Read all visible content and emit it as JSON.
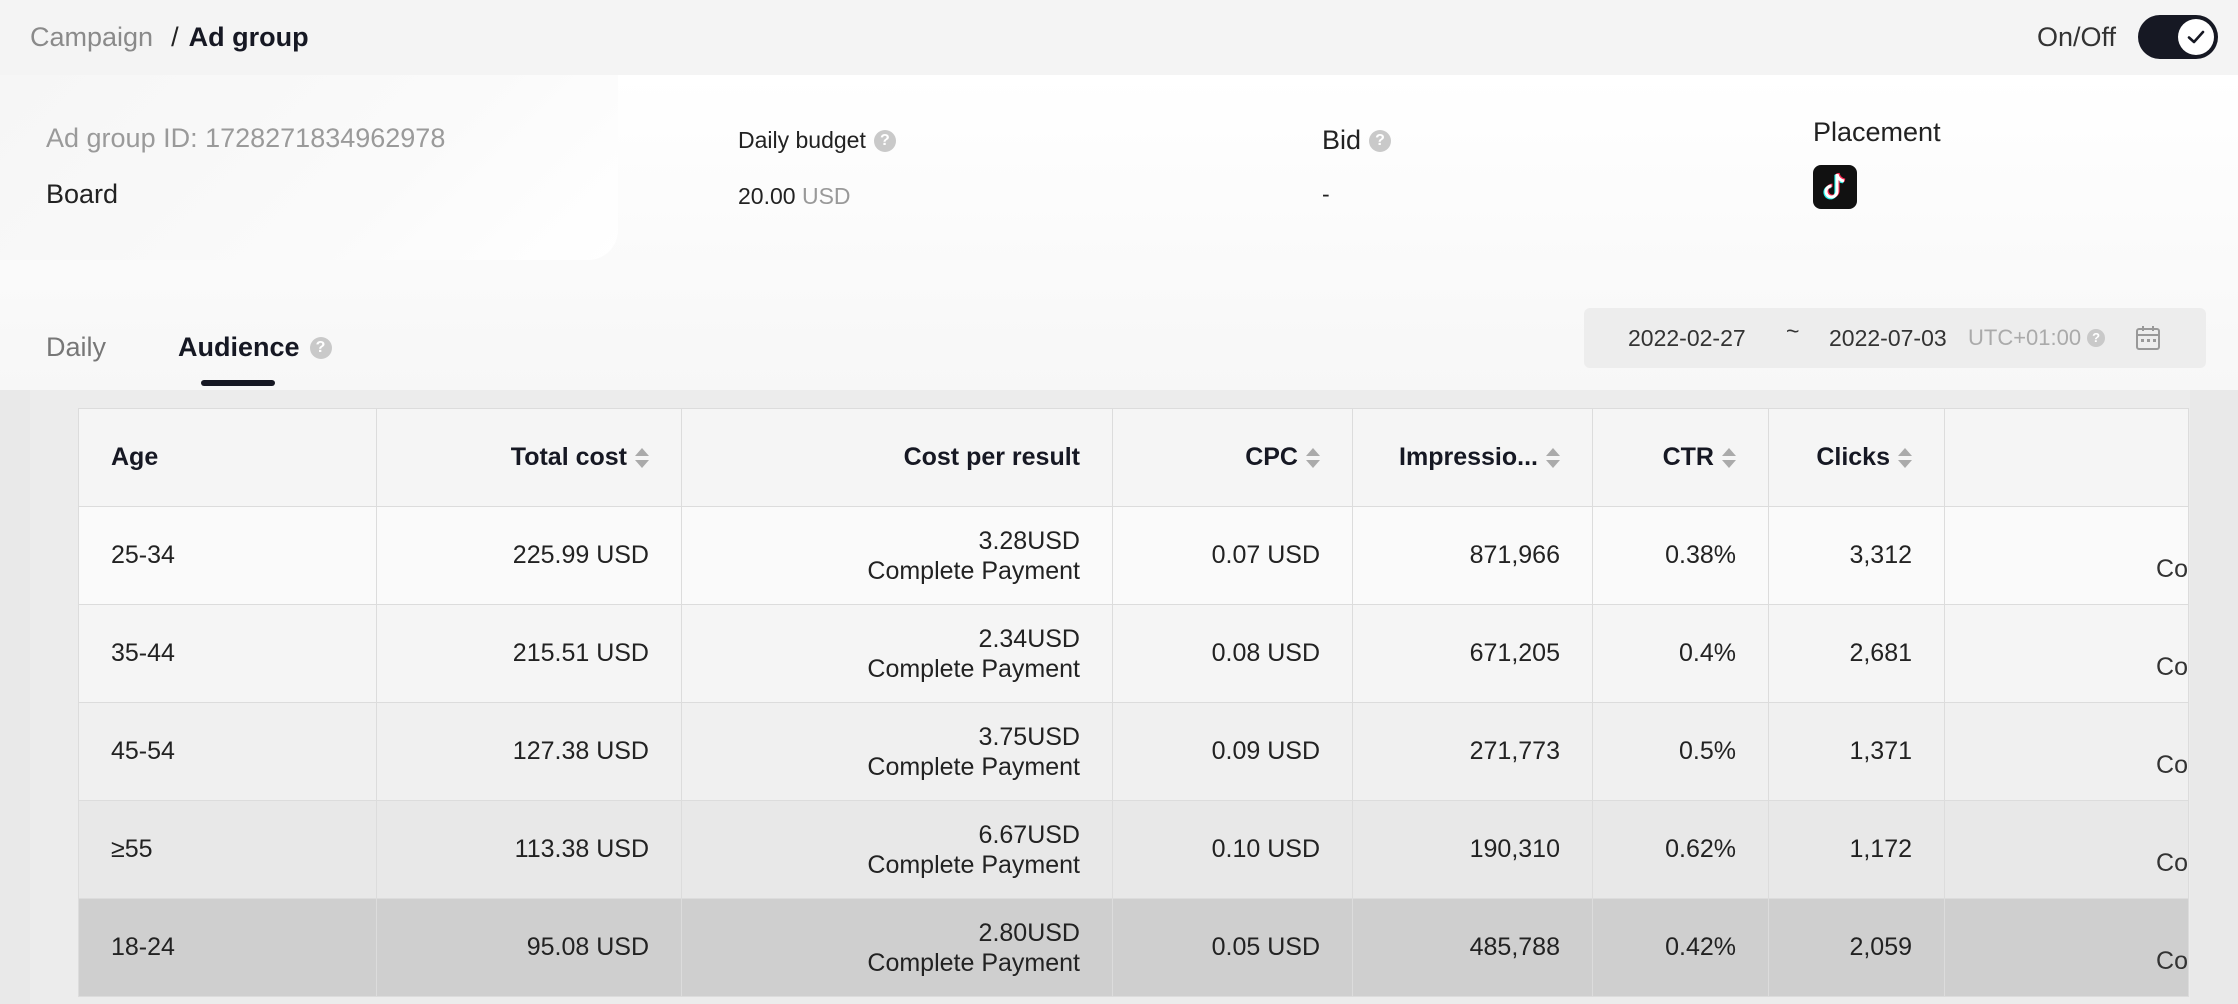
{
  "breadcrumb": {
    "parent": "Campaign",
    "separator": "/",
    "current": "Ad group"
  },
  "toggle": {
    "label": "On/Off",
    "state": "on"
  },
  "info": {
    "adgroup_id_text": "Ad group ID: 1728271834962978",
    "adgroup_name": "Board",
    "daily_budget_label": "Daily budget",
    "daily_budget_value": "20.00",
    "daily_budget_unit": "USD",
    "bid_label": "Bid",
    "bid_value": "-",
    "placement_label": "Placement",
    "placement_icon": "tiktok-icon"
  },
  "tabs": [
    {
      "label": "Daily",
      "active": false
    },
    {
      "label": "Audience",
      "active": true
    }
  ],
  "daterange": {
    "start": "2022-02-27",
    "separator": "~",
    "end": "2022-07-03",
    "timezone": "UTC+01:00"
  },
  "table": {
    "headers": [
      "Age",
      "Total cost",
      "Cost per result",
      "CPC",
      "Impressio...",
      "CTR",
      "Clicks",
      ""
    ],
    "rows": [
      {
        "age": "25-34",
        "total_cost": "225.99 USD",
        "cpr_value": "3.28USD",
        "cpr_type": "Complete Payment",
        "cpc": "0.07 USD",
        "impressions": "871,966",
        "ctr": "0.38%",
        "clicks": "3,312",
        "extra": "Co"
      },
      {
        "age": "35-44",
        "total_cost": "215.51 USD",
        "cpr_value": "2.34USD",
        "cpr_type": "Complete Payment",
        "cpc": "0.08 USD",
        "impressions": "671,205",
        "ctr": "0.4%",
        "clicks": "2,681",
        "extra": "Co"
      },
      {
        "age": "45-54",
        "total_cost": "127.38 USD",
        "cpr_value": "3.75USD",
        "cpr_type": "Complete Payment",
        "cpc": "0.09 USD",
        "impressions": "271,773",
        "ctr": "0.5%",
        "clicks": "1,371",
        "extra": "Co"
      },
      {
        "age": "≥55",
        "total_cost": "113.38 USD",
        "cpr_value": "6.67USD",
        "cpr_type": "Complete Payment",
        "cpc": "0.10 USD",
        "impressions": "190,310",
        "ctr": "0.62%",
        "clicks": "1,172",
        "extra": "Co"
      },
      {
        "age": "18-24",
        "total_cost": "95.08 USD",
        "cpr_value": "2.80USD",
        "cpr_type": "Complete Payment",
        "cpc": "0.05 USD",
        "impressions": "485,788",
        "ctr": "0.42%",
        "clicks": "2,059",
        "extra": "Co"
      }
    ]
  }
}
